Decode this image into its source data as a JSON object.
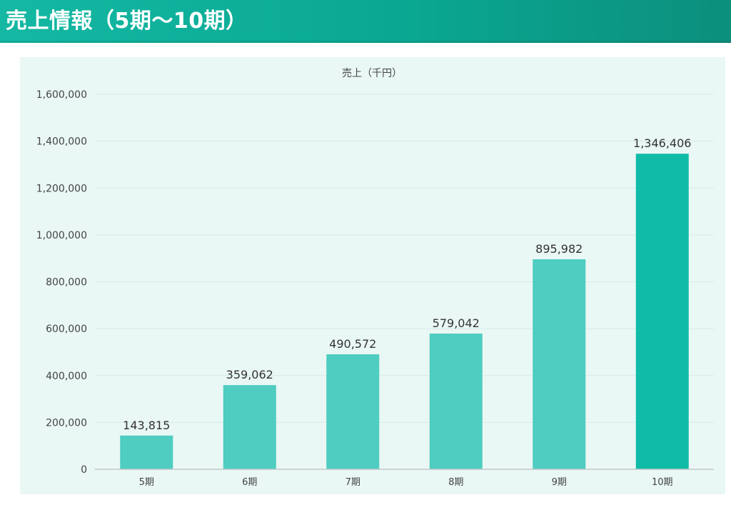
{
  "header": {
    "title": "売上情報（5期～10期）"
  },
  "chart_data": {
    "type": "bar",
    "title": "売上（千円）",
    "xlabel": "",
    "ylabel": "",
    "categories": [
      "5期",
      "6期",
      "7期",
      "8期",
      "9期",
      "10期"
    ],
    "values": [
      143815,
      359062,
      490572,
      579042,
      895982,
      1346406
    ],
    "value_labels": [
      "143,815",
      "359,062",
      "490,572",
      "579,042",
      "895,982",
      "1,346,406"
    ],
    "ylim": [
      0,
      1600000
    ],
    "y_ticks": [
      0,
      200000,
      400000,
      600000,
      800000,
      1000000,
      1200000,
      1400000,
      1600000
    ],
    "y_tick_labels": [
      "0",
      "200,000",
      "400,000",
      "600,000",
      "800,000",
      "1,000,000",
      "1,200,000",
      "1,400,000",
      "1,600,000"
    ],
    "grid": true,
    "colors": {
      "bar": "#4ecdc0",
      "bar_highlight": "#10bba8",
      "grid": "#d6ebe8",
      "axis": "#bfc9c7",
      "text": "#444444",
      "label": "#333333"
    }
  }
}
